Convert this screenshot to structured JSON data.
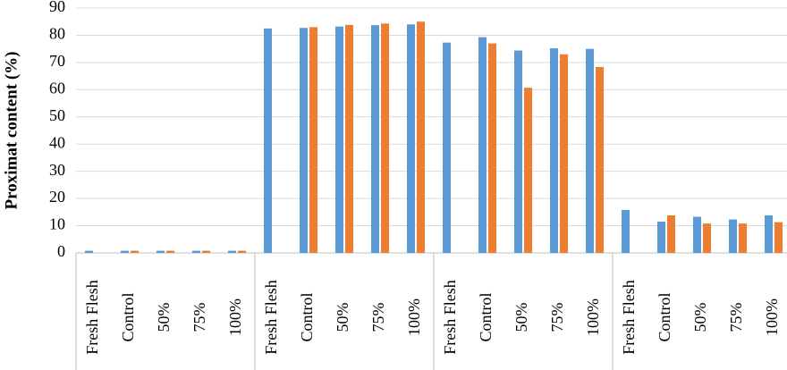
{
  "chart_data": {
    "type": "bar",
    "y_label": "Proximat content (%)",
    "categories": [
      "Fresh Flesh",
      "Control",
      "50%",
      "75%",
      "100%",
      "Fresh Flesh",
      "Control",
      "50%",
      "75%",
      "100%",
      "Fresh Flesh",
      "Control",
      "50%",
      "75%",
      "100%",
      "Fresh Flesh",
      "Control",
      "50%",
      "75%",
      "100%"
    ],
    "series": [
      {
        "color": "#5b9bd5",
        "values": [
          0.8,
          0.8,
          0.8,
          0.8,
          0.8,
          82.5,
          82.7,
          83.2,
          83.7,
          84,
          77.3,
          79.3,
          74.4,
          75.2,
          75,
          15.8,
          11.5,
          13.3,
          12.3,
          13.8
        ]
      },
      {
        "color": "#ed7d31",
        "values": [
          null,
          0.8,
          0.8,
          0.8,
          0.8,
          null,
          83,
          83.8,
          84.3,
          85,
          null,
          77,
          60.7,
          73,
          68.3,
          null,
          13.8,
          10.8,
          10.8,
          11.3
        ]
      }
    ],
    "ylim": [
      0,
      90
    ],
    "yticks": [
      0,
      10,
      20,
      30,
      40,
      50,
      60,
      70,
      80,
      90
    ],
    "grid": true
  }
}
